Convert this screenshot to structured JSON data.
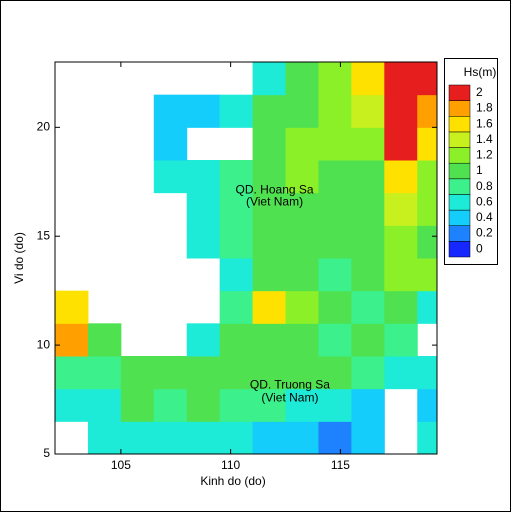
{
  "chart_data": {
    "type": "heatmap",
    "xlabel": "Kinh do (do)",
    "ylabel": "Vi do (do)",
    "xlim": [
      102,
      119.4
    ],
    "ylim": [
      5,
      23
    ],
    "xticks": [
      105,
      110,
      115
    ],
    "yticks": [
      5,
      10,
      15,
      20
    ],
    "x": [
      102.75,
      104.25,
      105.75,
      107.25,
      108.75,
      110.25,
      111.75,
      113.25,
      114.75,
      116.25,
      117.75,
      119.25
    ],
    "y": [
      5.75,
      7.25,
      8.75,
      10.25,
      11.75,
      13.25,
      14.75,
      16.25,
      17.75,
      19.25,
      20.75,
      22.25
    ],
    "z": [
      [
        null,
        0.5,
        0.6,
        0.6,
        0.6,
        0.5,
        0.4,
        0.3,
        0.2,
        0.3,
        null,
        0.5
      ],
      [
        0.6,
        0.7,
        0.9,
        0.8,
        0.9,
        0.8,
        0.8,
        0.7,
        0.6,
        0.4,
        null,
        0.4
      ],
      [
        0.8,
        0.8,
        0.9,
        0.9,
        1.0,
        0.9,
        0.9,
        1.0,
        0.9,
        0.8,
        0.6,
        0.5
      ],
      [
        1.8,
        0.9,
        null,
        null,
        0.7,
        0.9,
        1.0,
        0.9,
        0.8,
        0.9,
        0.8,
        null
      ],
      [
        1.6,
        null,
        null,
        null,
        null,
        0.8,
        1.6,
        1.2,
        0.9,
        0.8,
        0.9,
        0.6
      ],
      [
        null,
        null,
        null,
        null,
        null,
        0.7,
        0.9,
        0.9,
        0.8,
        1.0,
        1.2,
        1.2
      ],
      [
        null,
        null,
        null,
        null,
        0.5,
        0.8,
        0.9,
        0.9,
        1.0,
        1.0,
        1.2,
        1.0
      ],
      [
        null,
        null,
        null,
        null,
        0.6,
        0.8,
        0.9,
        1.0,
        1.0,
        1.0,
        1.4,
        1.2
      ],
      [
        null,
        null,
        null,
        0.5,
        0.6,
        0.8,
        1.0,
        1.1,
        1.0,
        1.0,
        1.6,
        1.2
      ],
      [
        null,
        null,
        null,
        0.4,
        null,
        null,
        1.0,
        1.1,
        1.2,
        1.2,
        1.9,
        1.5
      ],
      [
        null,
        null,
        null,
        0.3,
        0.4,
        0.6,
        0.9,
        1.0,
        1.2,
        1.4,
        2.0,
        1.8
      ],
      [
        null,
        null,
        null,
        null,
        null,
        null,
        0.6,
        1.0,
        1.2,
        1.6,
        2.1,
        1.9
      ]
    ],
    "annotations": [
      {
        "text": "QD. Hoang Sa",
        "x": 112,
        "y": 17.1
      },
      {
        "text": "(Viet Nam)",
        "x": 112,
        "y": 16.55
      },
      {
        "text": "QD. Truong Sa",
        "x": 112.7,
        "y": 8.15
      },
      {
        "text": "(Viet Nam)",
        "x": 112.7,
        "y": 7.55
      }
    ],
    "colorbar": {
      "title": "Hs(m)",
      "clim": [
        -0.1,
        2.1
      ],
      "ticks": [
        0,
        0.2,
        0.4,
        0.6,
        0.8,
        1,
        1.2,
        1.4,
        1.6,
        1.8,
        2
      ],
      "colors": [
        "#1428ff",
        "#1e82ff",
        "#14cdfa",
        "#1eebd7",
        "#3cf08c",
        "#50e150",
        "#8cf028",
        "#c8f01e",
        "#ffe100",
        "#ffa000",
        "#e61e1e"
      ]
    }
  }
}
